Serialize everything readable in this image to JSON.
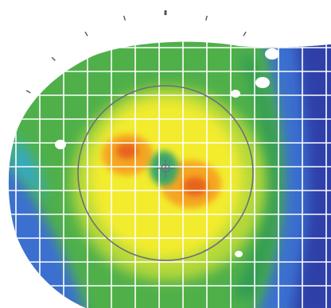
{
  "image": {
    "type": "corneal-topography-color-map",
    "palette": {
      "background": "#ffffff",
      "deep_blue": "#2d3fa8",
      "blue": "#3a6fd0",
      "cyan": "#35a9c9",
      "teal_green": "#2f9a55",
      "green": "#52b84a",
      "yellow_green": "#b4d83a",
      "yellow": "#f3ec2e",
      "orange": "#f5a623",
      "red_orange": "#e8641e",
      "grid": "#ffffff",
      "reference_circle": "#6b6f7a",
      "tick": "#555555"
    },
    "features": [
      "outer-tick-ring",
      "topography-map",
      "grid-overlay",
      "reference-circle",
      "center-marker"
    ]
  }
}
